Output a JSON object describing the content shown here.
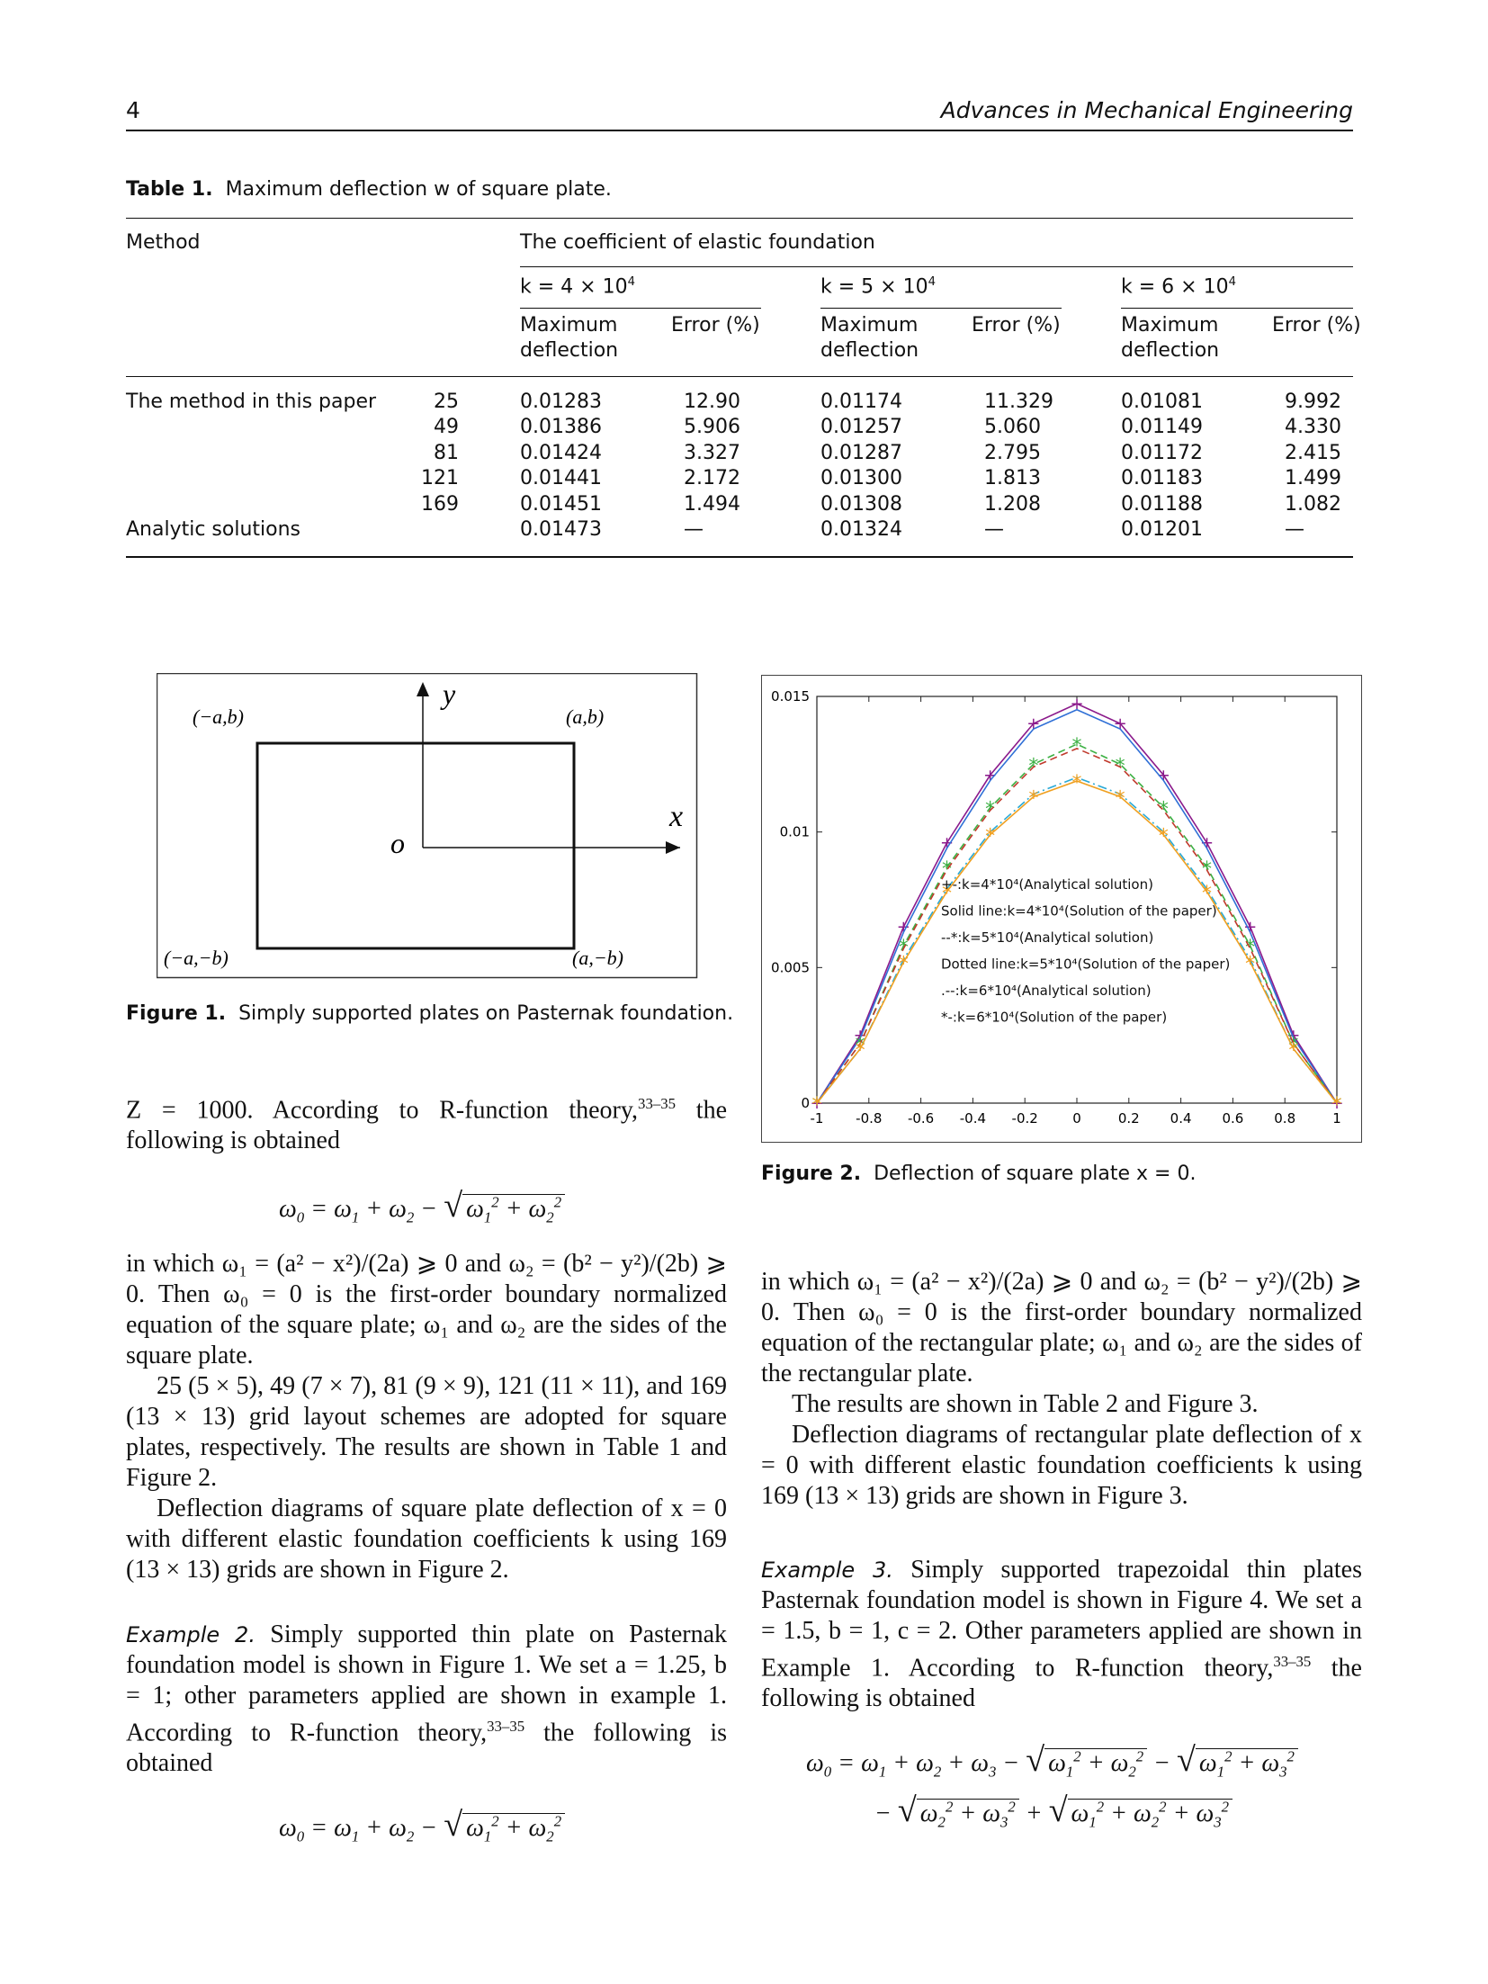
{
  "header": {
    "page_number": "4",
    "journal": "Advances in Mechanical Engineering"
  },
  "table1": {
    "label": "Table 1.",
    "title": "Maximum deflection w of square plate.",
    "col_method": "Method",
    "col_group": "The coefficient of elastic foundation",
    "k_headers": [
      "k = 4 × 10",
      "k = 5 × 10",
      "k = 6 × 10"
    ],
    "k_exp": "4",
    "sub_max": [
      "Maximum",
      "deflection"
    ],
    "sub_err": "Error (%)",
    "row_method_label": "The method in this paper",
    "grids": [
      "25",
      "49",
      "81",
      "121",
      "169"
    ],
    "rows": [
      [
        "0.01283",
        "12.90",
        "0.01174",
        "11.329",
        "0.01081",
        "9.992"
      ],
      [
        "0.01386",
        "5.906",
        "0.01257",
        "5.060",
        "0.01149",
        "4.330"
      ],
      [
        "0.01424",
        "3.327",
        "0.01287",
        "2.795",
        "0.01172",
        "2.415"
      ],
      [
        "0.01441",
        "2.172",
        "0.01300",
        "1.813",
        "0.01183",
        "1.499"
      ],
      [
        "0.01451",
        "1.494",
        "0.01308",
        "1.208",
        "0.01188",
        "1.082"
      ]
    ],
    "analytic_label": "Analytic solutions",
    "analytic": [
      "0.01473",
      "—",
      "0.01324",
      "—",
      "0.01201",
      "—"
    ]
  },
  "figure1": {
    "label": "Figure 1.",
    "caption": "Simply supported plates on Pasternak foundation.",
    "corner_tl": "(−a,b)",
    "corner_tr": "(a,b)",
    "corner_bl": "(−a,−b)",
    "corner_br": "(a,−b)",
    "axis_y": "y",
    "axis_x": "x",
    "origin": "o"
  },
  "figure2": {
    "label": "Figure 2.",
    "caption": "Deflection of square plate x = 0.",
    "legend": [
      "+-:k=4*10⁴(Analytical solution)",
      "Solid line:k=4*10⁴(Solution of the paper)",
      "--*:k=5*10⁴(Analytical solution)",
      "Dotted line:k=5*10⁴(Solution of the paper)",
      ".--:k=6*10⁴(Analytical solution)",
      "*-:k=6*10⁴(Solution of the paper)"
    ]
  },
  "chart_data": {
    "type": "line",
    "title": "",
    "xlabel": "",
    "ylabel": "",
    "xlim": [
      -1,
      1
    ],
    "ylim": [
      0,
      0.015
    ],
    "xticks": [
      "-1",
      "-0.8",
      "-0.6",
      "-0.4",
      "-0.2",
      "0",
      "0.2",
      "0.4",
      "0.6",
      "0.8",
      "1"
    ],
    "yticks": [
      "0",
      "0.005",
      "0.01",
      "0.015"
    ],
    "legend_position": "center-right",
    "x": [
      -1,
      -0.8333,
      -0.6667,
      -0.5,
      -0.3333,
      -0.1667,
      0,
      0.1667,
      0.3333,
      0.5,
      0.6667,
      0.8333,
      1
    ],
    "series": [
      {
        "name": "+-:k=4*10⁴(Analytical solution)",
        "color": "#8b1a8b",
        "marker": "+",
        "values": [
          0,
          0.0025,
          0.0065,
          0.0096,
          0.0121,
          0.014,
          0.01473,
          0.014,
          0.0121,
          0.0096,
          0.0065,
          0.0025,
          0
        ]
      },
      {
        "name": "Solid line:k=4*10⁴(Solution of the paper)",
        "color": "#2f6fd6",
        "marker": "",
        "values": [
          0,
          0.0024,
          0.0063,
          0.0094,
          0.0119,
          0.0138,
          0.01451,
          0.0138,
          0.0119,
          0.0094,
          0.0063,
          0.0024,
          0
        ]
      },
      {
        "name": "--*:k=5*10⁴(Analytical solution)",
        "color": "#3cb043",
        "marker": "*",
        "values": [
          0,
          0.0022,
          0.0058,
          0.0087,
          0.0109,
          0.0125,
          0.01324,
          0.0125,
          0.0109,
          0.0087,
          0.0058,
          0.0022,
          0
        ]
      },
      {
        "name": "Dotted line:k=5*10⁴(Solution of the paper)",
        "color": "#c0392b",
        "marker": "",
        "values": [
          0,
          0.0022,
          0.0057,
          0.0086,
          0.0108,
          0.0124,
          0.01308,
          0.0124,
          0.0108,
          0.0086,
          0.0057,
          0.0022,
          0
        ]
      },
      {
        "name": ".--:k=6*10⁴(Analytical solution)",
        "color": "#29a9d6",
        "marker": "",
        "values": [
          0,
          0.002,
          0.0053,
          0.0079,
          0.01,
          0.0114,
          0.01201,
          0.0114,
          0.01,
          0.0079,
          0.0053,
          0.002,
          0
        ]
      },
      {
        "name": "*-:k=6*10⁴(Solution of the paper)",
        "color": "#f0a020",
        "marker": "*",
        "values": [
          0,
          0.002,
          0.0052,
          0.0078,
          0.0099,
          0.0113,
          0.01188,
          0.0113,
          0.0099,
          0.0078,
          0.0052,
          0.002,
          0
        ]
      }
    ]
  },
  "left_col": {
    "p1": "Z = 1000. According to R-function theory,",
    "p1_cite": "33–35",
    "p1_end": " the following is obtained",
    "p2": "in which ω₁ = (a² − x²)/(2a) ⩾ 0 and ω₂ = (b² − y²)/(2b) ⩾ 0. Then ω₀ = 0 is the first-order boundary normalized equation of the square plate; ω₁ and ω₂ are the sides of the square plate.",
    "p3": "25 (5 × 5), 49 (7 × 7), 81 (9 × 9), 121 (11 × 11), and 169 (13 × 13) grid layout schemes are adopted for square plates, respectively. The results are shown in Table 1 and Figure 2.",
    "p4": "Deflection diagrams of square plate deflection of x = 0 with different elastic foundation coefficients k using 169 (13 × 13) grids are shown in Figure 2.",
    "ex2_label": "Example 2.",
    "p5": " Simply supported thin plate on Pasternak foundation model is shown in Figure 1. We set a = 1.25, b = 1; other parameters applied are shown in example 1. According to R-function theory,",
    "p5_cite": "33–35",
    "p5_end": " the following is obtained"
  },
  "right_col": {
    "p1": "in which ω₁ = (a² − x²)/(2a) ⩾ 0 and ω₂ = (b² − y²)/(2b) ⩾ 0. Then ω₀ = 0 is the first-order boundary normalized equation of the rectangular plate; ω₁ and ω₂ are the sides of the rectangular plate.",
    "p2": "The results are shown in Table 2 and Figure 3.",
    "p3": "Deflection diagrams of rectangular plate deflection of x = 0 with different elastic foundation coefficients k using 169 (13 × 13) grids are shown in Figure 3.",
    "ex3_label": "Example 3.",
    "p4": " Simply supported trapezoidal thin plates Pasternak foundation model is shown in Figure 4. We set a = 1.5, b = 1, c = 2. Other parameters applied are shown in Example 1. According to R-function theory,",
    "p4_cite": "33–35",
    "p4_end": " the following is obtained"
  }
}
